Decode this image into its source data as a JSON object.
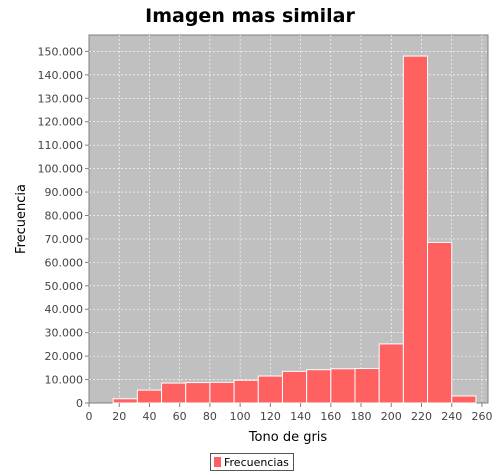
{
  "chart_data": {
    "type": "bar",
    "title": "Imagen mas similar",
    "xlabel": "Tono de gris",
    "ylabel": "Frecuencia",
    "xlim": [
      0,
      264
    ],
    "ylim": [
      0,
      157000
    ],
    "xticks": [
      "0",
      "20",
      "40",
      "60",
      "80",
      "100",
      "120",
      "140",
      "160",
      "180",
      "200",
      "220",
      "240",
      "260"
    ],
    "yticks": [
      "0",
      "10.000",
      "20.000",
      "30.000",
      "40.000",
      "50.000",
      "60.000",
      "70.000",
      "80.000",
      "90.000",
      "100.000",
      "110.000",
      "120.000",
      "130.000",
      "140.000",
      "150.000"
    ],
    "grid": true,
    "legend_position": "bottom",
    "series": [
      {
        "name": "Frecuencias",
        "color": "#ff6060",
        "bins": [
          {
            "start": 0,
            "end": 16,
            "value": 0
          },
          {
            "start": 16,
            "end": 32,
            "value": 1800
          },
          {
            "start": 32,
            "end": 48,
            "value": 5500
          },
          {
            "start": 48,
            "end": 64,
            "value": 8500
          },
          {
            "start": 64,
            "end": 80,
            "value": 8700
          },
          {
            "start": 80,
            "end": 96,
            "value": 8800
          },
          {
            "start": 96,
            "end": 112,
            "value": 9700
          },
          {
            "start": 112,
            "end": 128,
            "value": 11500
          },
          {
            "start": 128,
            "end": 144,
            "value": 13500
          },
          {
            "start": 144,
            "end": 160,
            "value": 14200
          },
          {
            "start": 160,
            "end": 176,
            "value": 14600
          },
          {
            "start": 176,
            "end": 192,
            "value": 14700
          },
          {
            "start": 192,
            "end": 208,
            "value": 25200
          },
          {
            "start": 208,
            "end": 224,
            "value": 148000
          },
          {
            "start": 224,
            "end": 240,
            "value": 68500
          },
          {
            "start": 240,
            "end": 256,
            "value": 3000
          }
        ]
      }
    ]
  }
}
